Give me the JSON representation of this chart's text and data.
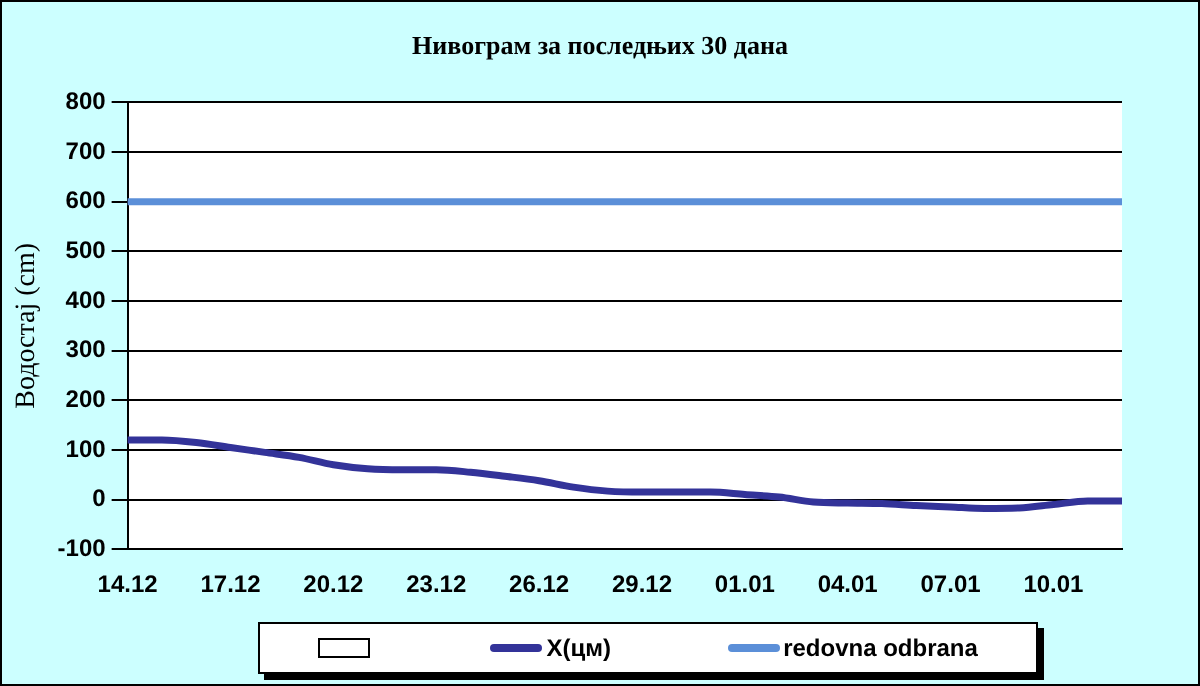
{
  "chart_data": {
    "type": "line",
    "title": "Нивограм за последњих 30 дана",
    "ylabel": "Водостај (cm)",
    "categories": [
      "14.12",
      null,
      null,
      "17.12",
      null,
      null,
      "20.12",
      null,
      null,
      "23.12",
      null,
      null,
      "26.12",
      null,
      null,
      "29.12",
      null,
      null,
      "01.01",
      null,
      null,
      "04.01",
      null,
      null,
      "07.01",
      null,
      null,
      "10.01",
      null,
      null
    ],
    "series": [
      {
        "type": "bar",
        "color": "#ffffff",
        "values": [
          null,
          null,
          null,
          null,
          null,
          null,
          null,
          null,
          null,
          null,
          null,
          null,
          null,
          null,
          null,
          null,
          null,
          null,
          null,
          null,
          null,
          null,
          null,
          null,
          null,
          null,
          null,
          null,
          null,
          null
        ]
      },
      {
        "name": "X(цм)",
        "color": "#333399",
        "values": [
          120,
          120,
          115,
          105,
          95,
          85,
          70,
          62,
          60,
          60,
          55,
          47,
          38,
          25,
          17,
          15,
          15,
          15,
          10,
          5,
          -5,
          -7,
          -8,
          -12,
          -15,
          -18,
          -17,
          -10,
          -3,
          -3
        ]
      },
      {
        "name": "redovna odbrana",
        "color": "#5b8fd8",
        "values": [
          600,
          600,
          600,
          600,
          600,
          600,
          600,
          600,
          600,
          600,
          600,
          600,
          600,
          600,
          600,
          600,
          600,
          600,
          600,
          600,
          600,
          600,
          600,
          600,
          600,
          600,
          600,
          600,
          600,
          600
        ]
      }
    ],
    "ylim": [
      -100,
      800
    ],
    "yticks": [
      -100,
      0,
      100,
      200,
      300,
      400,
      500,
      600,
      700,
      800
    ],
    "grid": "y",
    "legend": "bottom",
    "marker": "none",
    "line_style": "solid"
  }
}
